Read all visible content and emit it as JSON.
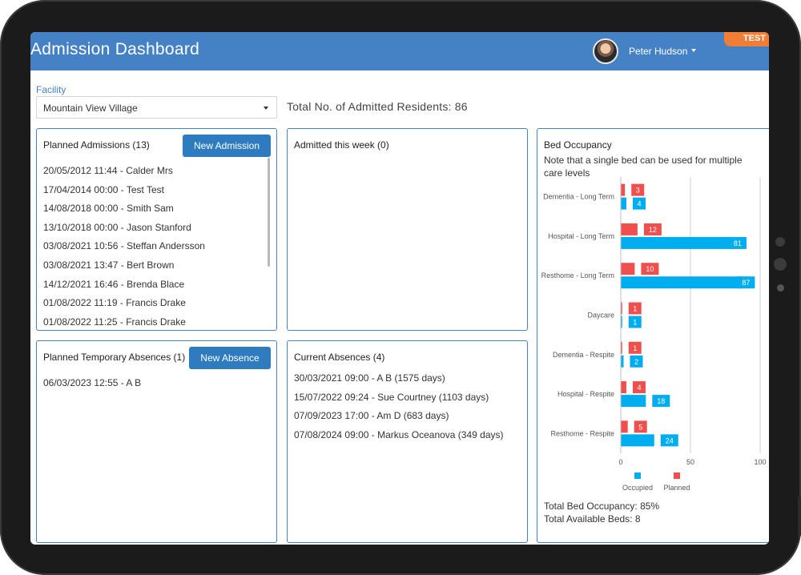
{
  "header": {
    "title": "Admission Dashboard",
    "user_name": "Peter Hudson",
    "env_badge": "TEST",
    "color": "#4582c5"
  },
  "facility": {
    "label": "Facility",
    "selected": "Mountain View Village"
  },
  "total_residents": "Total No. of Admitted Residents: 86",
  "planned_admissions": {
    "title": "Planned Admissions (13)",
    "button": "New Admission",
    "items": [
      "20/05/2012 11:44 - Calder Mrs",
      "17/04/2014 00:00 - Test Test",
      "14/08/2018 00:00 - Smith Sam",
      "13/10/2018 00:00 - Jason Stanford",
      "03/08/2021 10:56 - Steffan Andersson",
      "03/08/2021 13:47 - Bert Brown",
      "14/12/2021 16:46 - Brenda Blace",
      "01/08/2022 11:19 - Francis Drake",
      "01/08/2022 11:25 - Francis Drake"
    ]
  },
  "admitted_this_week": {
    "title": "Admitted this week (0)"
  },
  "planned_absences": {
    "title": "Planned Temporary Absences (1)",
    "button": "New Absence",
    "items": [
      "06/03/2023 12:55 - A B"
    ]
  },
  "current_absences": {
    "title": "Current Absences (4)",
    "items": [
      "30/03/2021 09:00 - A B (1575 days)",
      "15/07/2022 09:24 - Sue Courtney (1103 days)",
      "07/09/2023 17:00 - Am D (683 days)",
      "07/08/2024 09:00 - Markus Oceanova (349 days)"
    ]
  },
  "bed_occupancy": {
    "title": "Bed Occupancy",
    "note": "Note that a single bed can be used for multiple care levels",
    "total_occupancy": "Total Bed Occupancy: 85%",
    "total_available": "Total Available Beds: 8"
  },
  "chart_data": {
    "type": "bar",
    "orientation": "horizontal",
    "categories": [
      "Dementia - Long Term",
      "Hospital - Long Term",
      "Resthome - Long Term",
      "Daycare",
      "Dementia - Respite",
      "Hospital - Respite",
      "Resthome - Respite"
    ],
    "series": [
      {
        "name": "Planned",
        "color": "#f0504d",
        "values": [
          3,
          12,
          10,
          1,
          1,
          4,
          5
        ]
      },
      {
        "name": "Occupied",
        "color": "#00aeef",
        "values": [
          4,
          81,
          87,
          1,
          2,
          18,
          24
        ]
      }
    ],
    "xlim": [
      0,
      100
    ],
    "xticks": [
      0,
      50,
      100
    ],
    "grid": true,
    "legend": "bottom"
  }
}
